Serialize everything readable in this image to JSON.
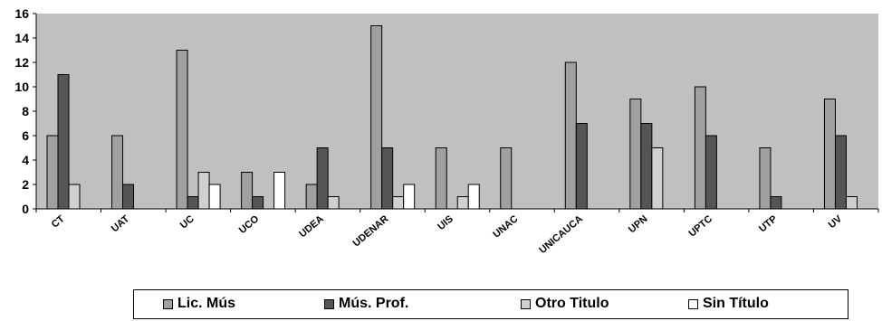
{
  "chart_data": {
    "type": "bar",
    "categories": [
      "CT",
      "UAT",
      "UC",
      "UCO",
      "UDEA",
      "UDENAR",
      "UIS",
      "UNAC",
      "UNICAUCA",
      "UPN",
      "UPTC",
      "UTP",
      "UV"
    ],
    "series": [
      {
        "name": "Lic. Mús",
        "color": "#a0a0a0",
        "values": [
          6,
          6,
          13,
          3,
          2,
          15,
          5,
          5,
          12,
          9,
          10,
          5,
          9
        ]
      },
      {
        "name": "Mús. Prof.",
        "color": "#555555",
        "values": [
          11,
          2,
          1,
          1,
          5,
          5,
          0,
          0,
          7,
          7,
          6,
          1,
          6
        ]
      },
      {
        "name": "Otro Titulo",
        "color": "#d0d0d0",
        "values": [
          2,
          0,
          3,
          0,
          1,
          1,
          1,
          0,
          0,
          5,
          0,
          0,
          1
        ]
      },
      {
        "name": "Sin Título",
        "color": "#ffffff",
        "values": [
          0,
          0,
          2,
          3,
          0,
          2,
          2,
          0,
          0,
          0,
          0,
          0,
          0
        ]
      }
    ],
    "ylim": [
      0,
      16
    ],
    "yticks": [
      0,
      2,
      4,
      6,
      8,
      10,
      12,
      14,
      16
    ],
    "grid": false,
    "plot_background": "#c0c0c0",
    "legend_position": "bottom"
  }
}
